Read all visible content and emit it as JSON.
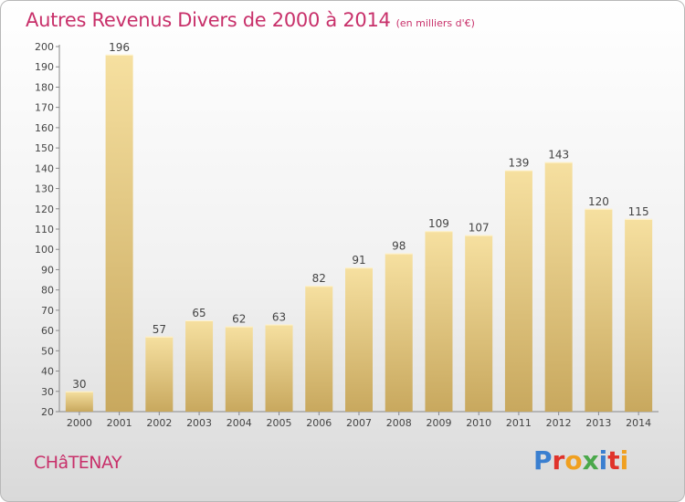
{
  "chart_data": {
    "type": "bar",
    "title": "Autres Revenus Divers de 2000 à 2014",
    "subtitle": "(en milliers d'€)",
    "categories": [
      "2000",
      "2001",
      "2002",
      "2003",
      "2004",
      "2005",
      "2006",
      "2007",
      "2008",
      "2009",
      "2010",
      "2011",
      "2012",
      "2013",
      "2014"
    ],
    "values": [
      30,
      196,
      57,
      65,
      62,
      63,
      82,
      91,
      98,
      109,
      107,
      139,
      143,
      120,
      115
    ],
    "ylim": [
      20,
      200
    ],
    "yticks": [
      20,
      30,
      40,
      50,
      60,
      70,
      80,
      90,
      100,
      110,
      120,
      130,
      140,
      150,
      160,
      170,
      180,
      190,
      200
    ],
    "grid": false,
    "colors": {
      "bar_top": "#f6e0a0",
      "bar_bottom": "#c8a85e",
      "title": "#c8306a"
    }
  },
  "footer": {
    "city": "CHâTENAY",
    "logo_letters": [
      {
        "ch": "P",
        "color": "#3a7fd0"
      },
      {
        "ch": "r",
        "color": "#e0332b"
      },
      {
        "ch": "o",
        "color": "#f0a020"
      },
      {
        "ch": "x",
        "color": "#4aa84a"
      },
      {
        "ch": "i",
        "color": "#3a7fd0"
      },
      {
        "ch": "t",
        "color": "#e0332b"
      },
      {
        "ch": "i",
        "color": "#f0a020"
      }
    ]
  }
}
